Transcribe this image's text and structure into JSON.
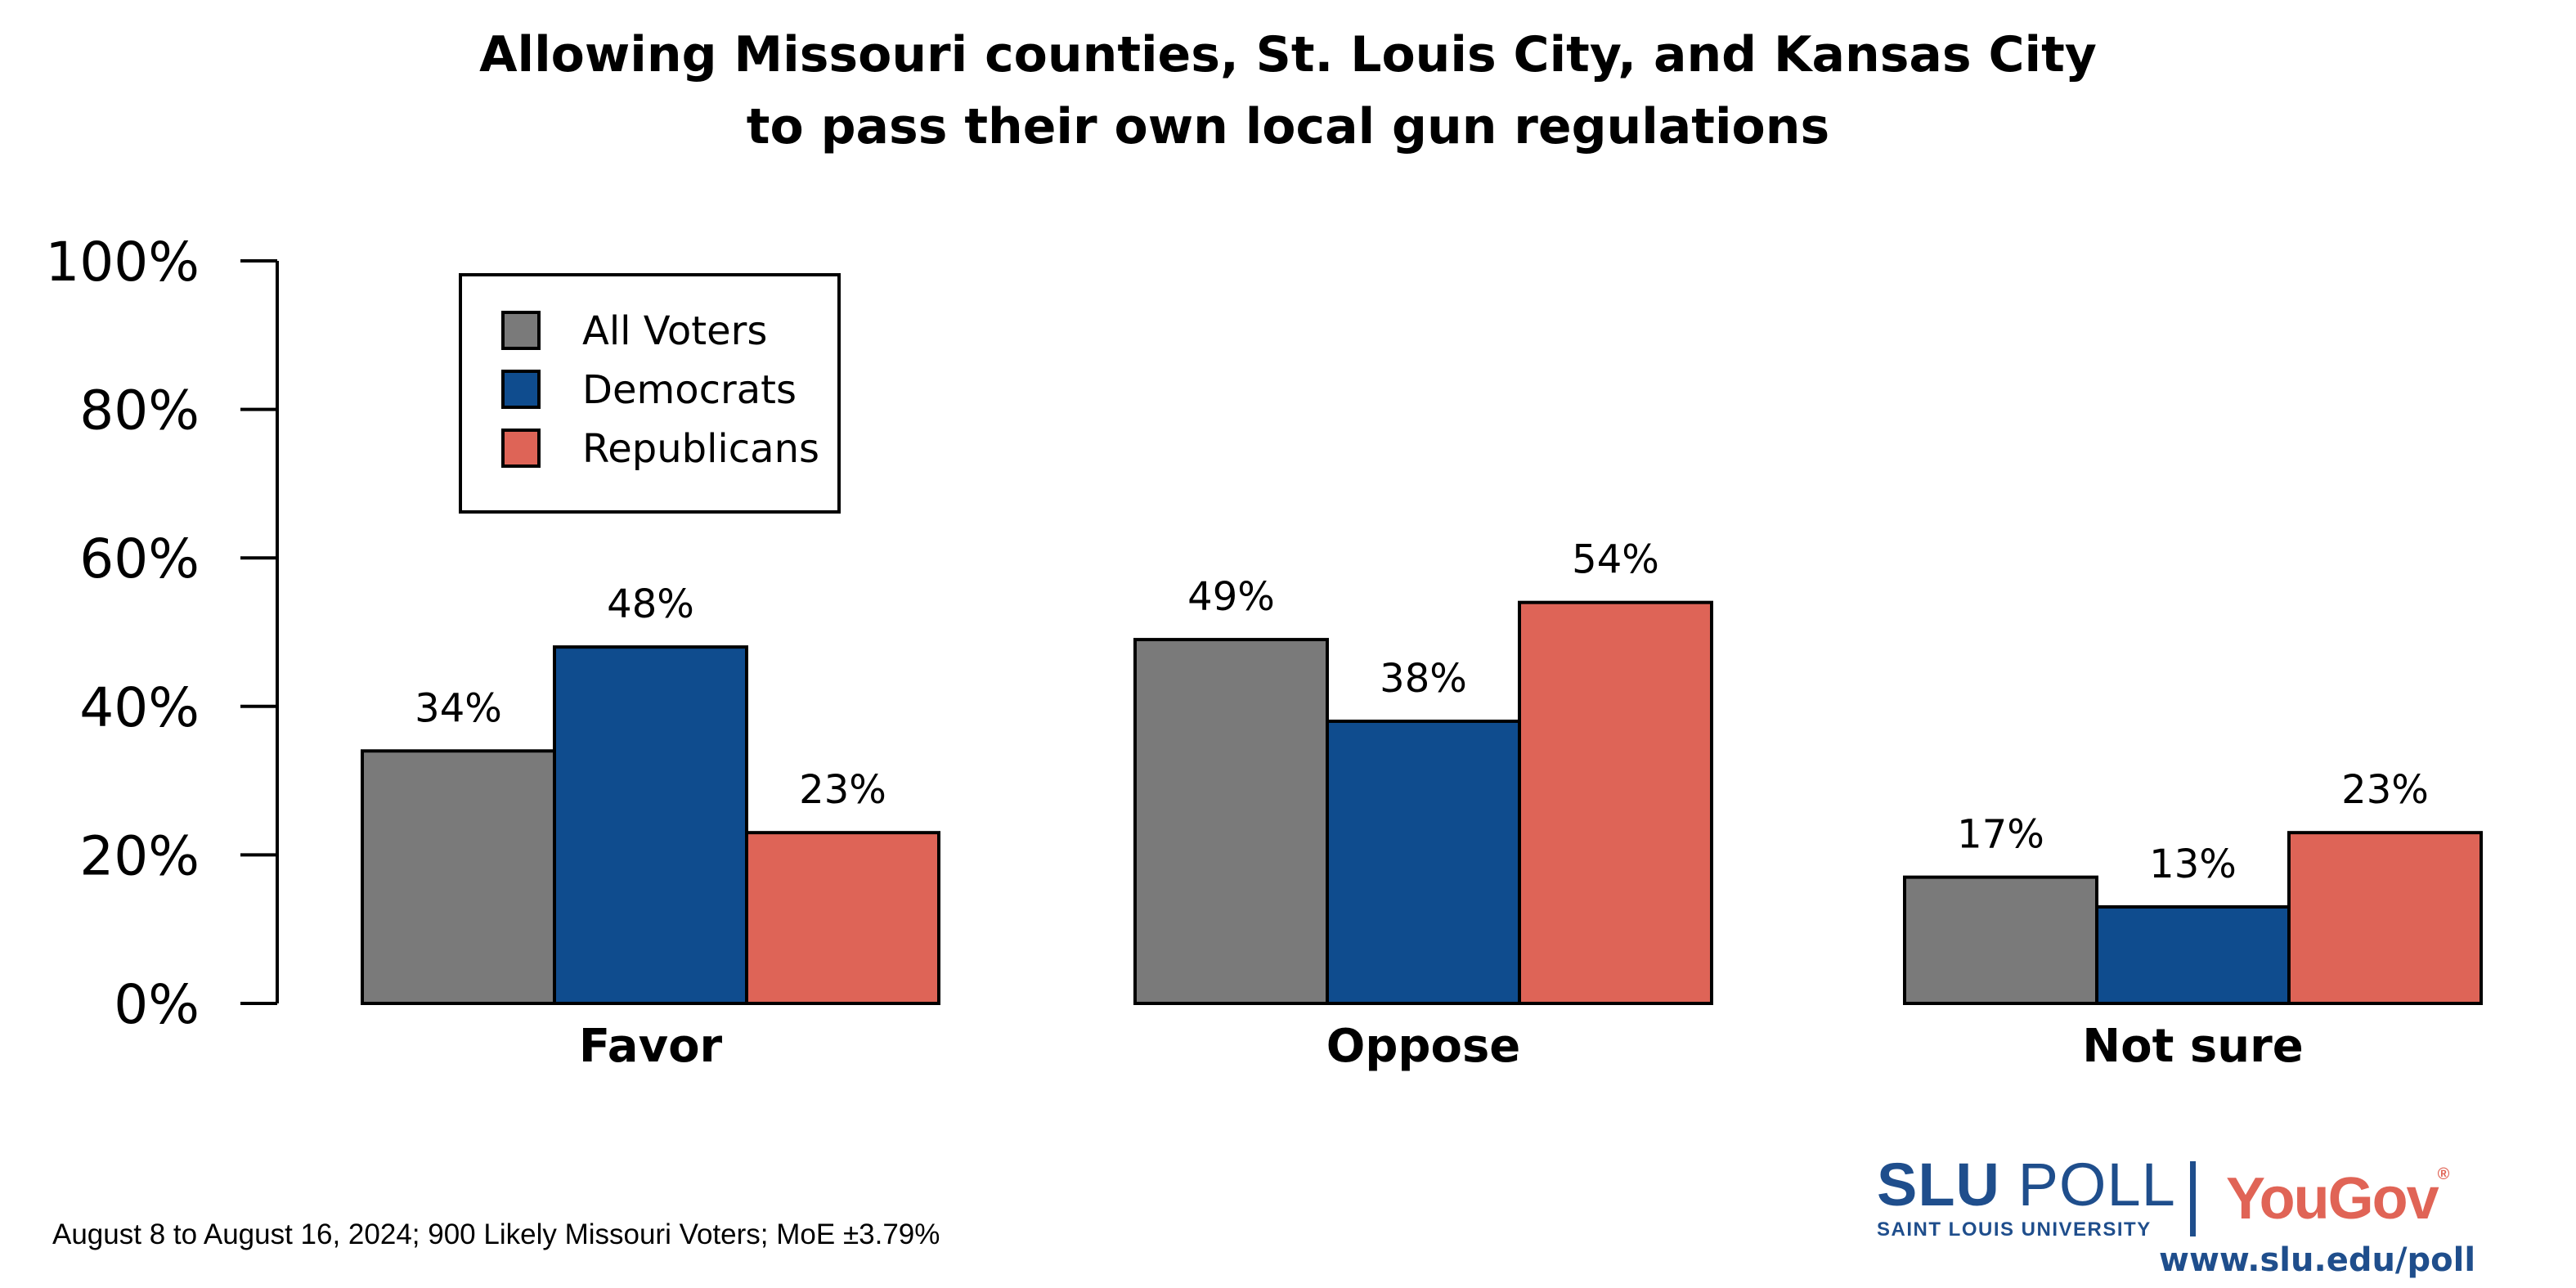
{
  "chart_data": {
    "type": "bar",
    "title": "Allowing Missouri counties, St. Louis City, and Kansas City to pass their own local gun regulations",
    "title_lines": [
      "Allowing Missouri counties, St. Louis City, and Kansas City",
      "to pass their own local gun regulations"
    ],
    "categories": [
      "Favor",
      "Oppose",
      "Not sure"
    ],
    "series": [
      {
        "name": "All Voters",
        "color": "#7a7a7a",
        "values": [
          34,
          49,
          17
        ],
        "labels": [
          "34%",
          "49%",
          "17%"
        ]
      },
      {
        "name": "Democrats",
        "color": "#0f4c8e",
        "values": [
          48,
          38,
          13
        ],
        "labels": [
          "48%",
          "38%",
          "13%"
        ]
      },
      {
        "name": "Republicans",
        "color": "#de6457",
        "values": [
          23,
          54,
          23
        ],
        "labels": [
          "23%",
          "54%",
          "23%"
        ]
      }
    ],
    "ylim": [
      0,
      100
    ],
    "yticks": [
      0,
      20,
      40,
      60,
      80,
      100
    ],
    "ytick_labels": [
      "0%",
      "20%",
      "40%",
      "60%",
      "80%",
      "100%"
    ],
    "xlabel": "",
    "ylabel": "",
    "grid": false,
    "legend": "top-left"
  },
  "footer": {
    "note": "August 8 to August 16, 2024; 900 Likely Missouri Voters; MoE ±3.79%"
  },
  "branding": {
    "slu_bold": "SLU",
    "slu_poll": "POLL",
    "slu_sub": "SAINT LOUIS UNIVERSITY",
    "yougov": "YouGov",
    "url": "www.slu.edu/poll",
    "slu_color": "#1f4e8c",
    "yougov_color": "#e06456"
  }
}
